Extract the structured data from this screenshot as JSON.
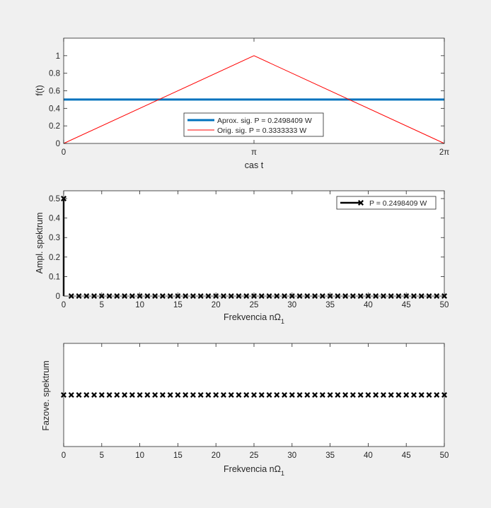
{
  "figure": {
    "background": "#f0f0f0"
  },
  "chart_data": [
    {
      "type": "line",
      "xlabel": "cas t",
      "ylabel": "f(t)",
      "xlim": [
        0,
        6.2832
      ],
      "ylim": [
        0,
        1.2
      ],
      "xticks": [
        0,
        3.1416,
        6.2832
      ],
      "xtick_labels": [
        "0",
        "π",
        "2π"
      ],
      "yticks": [
        0,
        0.2,
        0.4,
        0.6,
        0.8,
        1
      ],
      "ytick_labels": [
        "0",
        "0.2",
        "0.4",
        "0.6",
        "0.8",
        "1"
      ],
      "grid": false,
      "legend_position": "lower-center",
      "series": [
        {
          "name": "Aprox. sig. P = 0.2498409 W",
          "color": "#0072bd",
          "width": 3,
          "x": [
            0,
            6.2832
          ],
          "y": [
            0.5,
            0.5
          ]
        },
        {
          "name": "Orig. sig.    P = 0.3333333 W",
          "color": "#ff0000",
          "width": 1,
          "x": [
            0,
            3.1416,
            6.2832
          ],
          "y": [
            0,
            1,
            0
          ]
        }
      ]
    },
    {
      "type": "stem",
      "xlabel": "Frekvencia nΩ",
      "xlabel_sub": "1",
      "ylabel": "Ampl. spektrum",
      "xlim": [
        0,
        50
      ],
      "ylim": [
        0,
        0.54
      ],
      "xticks": [
        0,
        5,
        10,
        15,
        20,
        25,
        30,
        35,
        40,
        45,
        50
      ],
      "yticks": [
        0,
        0.1,
        0.2,
        0.3,
        0.4,
        0.5
      ],
      "ytick_labels": [
        "0",
        "0.1",
        "0.2",
        "0.3",
        "0.4",
        "0.5"
      ],
      "grid": false,
      "legend_position": "top-right",
      "series": [
        {
          "name": "P = 0.2498409 W",
          "color": "#000000",
          "marker": "x",
          "x": [
            0,
            1,
            2,
            3,
            4,
            5,
            6,
            7,
            8,
            9,
            10,
            11,
            12,
            13,
            14,
            15,
            16,
            17,
            18,
            19,
            20,
            21,
            22,
            23,
            24,
            25,
            26,
            27,
            28,
            29,
            30,
            31,
            32,
            33,
            34,
            35,
            36,
            37,
            38,
            39,
            40,
            41,
            42,
            43,
            44,
            45,
            46,
            47,
            48,
            49,
            50
          ],
          "y": [
            0.5,
            0,
            0,
            0,
            0,
            0,
            0,
            0,
            0,
            0,
            0,
            0,
            0,
            0,
            0,
            0,
            0,
            0,
            0,
            0,
            0,
            0,
            0,
            0,
            0,
            0,
            0,
            0,
            0,
            0,
            0,
            0,
            0,
            0,
            0,
            0,
            0,
            0,
            0,
            0,
            0,
            0,
            0,
            0,
            0,
            0,
            0,
            0,
            0,
            0,
            0
          ]
        }
      ]
    },
    {
      "type": "stem",
      "xlabel": "Frekvencia nΩ",
      "xlabel_sub": "1",
      "ylabel": "Fazove. spektrum",
      "xlim": [
        0,
        50
      ],
      "ylim": [
        -1,
        1
      ],
      "xticks": [
        0,
        5,
        10,
        15,
        20,
        25,
        30,
        35,
        40,
        45,
        50
      ],
      "yticks": [],
      "ytick_labels": [],
      "grid": false,
      "series": [
        {
          "color": "#000000",
          "marker": "x",
          "x": [
            0,
            1,
            2,
            3,
            4,
            5,
            6,
            7,
            8,
            9,
            10,
            11,
            12,
            13,
            14,
            15,
            16,
            17,
            18,
            19,
            20,
            21,
            22,
            23,
            24,
            25,
            26,
            27,
            28,
            29,
            30,
            31,
            32,
            33,
            34,
            35,
            36,
            37,
            38,
            39,
            40,
            41,
            42,
            43,
            44,
            45,
            46,
            47,
            48,
            49,
            50
          ],
          "y": [
            0,
            0,
            0,
            0,
            0,
            0,
            0,
            0,
            0,
            0,
            0,
            0,
            0,
            0,
            0,
            0,
            0,
            0,
            0,
            0,
            0,
            0,
            0,
            0,
            0,
            0,
            0,
            0,
            0,
            0,
            0,
            0,
            0,
            0,
            0,
            0,
            0,
            0,
            0,
            0,
            0,
            0,
            0,
            0,
            0,
            0,
            0,
            0,
            0,
            0,
            0
          ]
        }
      ]
    }
  ]
}
